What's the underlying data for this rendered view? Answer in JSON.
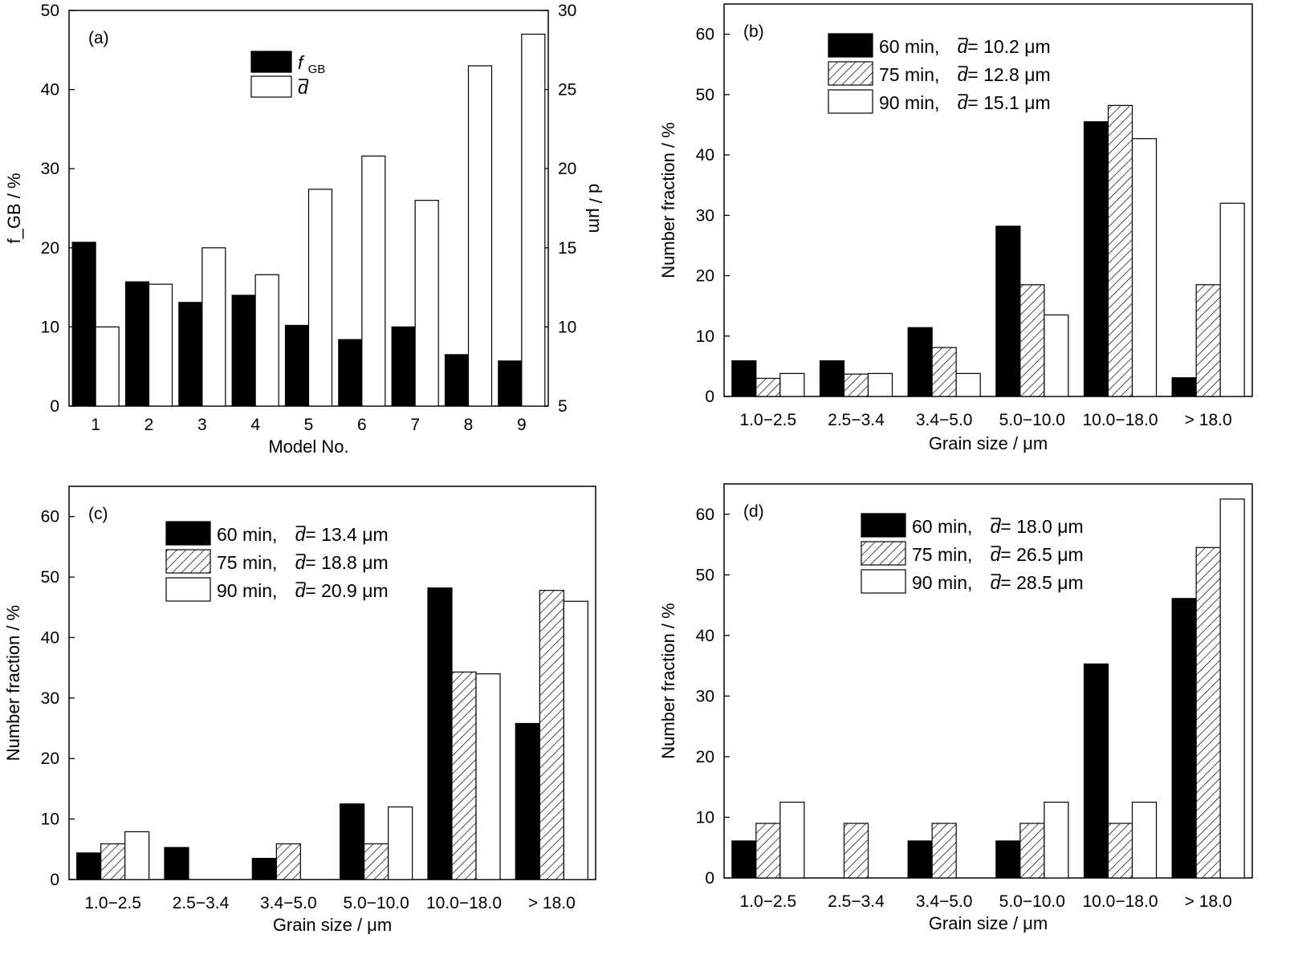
{
  "chart_data": [
    {
      "panel": "(a)",
      "type": "bar",
      "xlabel": "Model No.",
      "ylabel_left": "f_GB / %",
      "ylabel_right": "d / μm",
      "categories": [
        "1",
        "2",
        "3",
        "4",
        "5",
        "6",
        "7",
        "8",
        "9"
      ],
      "ylim_left": [
        0,
        50
      ],
      "yticks_left": [
        0,
        10,
        20,
        30,
        40,
        50
      ],
      "ylim_right": [
        5,
        30
      ],
      "yticks_right": [
        5,
        10,
        15,
        20,
        25,
        30
      ],
      "series": [
        {
          "name": "f_GB",
          "axis": "left",
          "fill": "#000000",
          "values": [
            20.7,
            15.7,
            13.1,
            14.0,
            10.2,
            8.4,
            10.0,
            6.5,
            5.7
          ]
        },
        {
          "name": "d",
          "axis": "right",
          "fill": "#ffffff",
          "values": [
            10.0,
            12.7,
            15.0,
            13.3,
            18.7,
            20.8,
            18.0,
            26.5,
            28.5
          ]
        }
      ],
      "legend": [
        {
          "sym": "f",
          "sub": "GB",
          "fill": "#000000"
        },
        {
          "sym": "d",
          "sub": "",
          "fill": "#ffffff"
        }
      ],
      "legend_position": "top-center"
    },
    {
      "panel": "(b)",
      "type": "bar",
      "xlabel": "Grain size / μm",
      "ylabel": "Number fraction / %",
      "categories": [
        "1.0−2.5",
        "2.5−3.4",
        "3.4−5.0",
        "5.0−10.0",
        "10.0−18.0",
        "> 18.0"
      ],
      "ylim": [
        0,
        65
      ],
      "yticks": [
        0,
        10,
        20,
        30,
        40,
        50,
        60
      ],
      "series": [
        {
          "name": "60 min, d = 10.2 μm",
          "fill": "solid",
          "values": [
            5.9,
            5.9,
            11.4,
            28.2,
            45.5,
            3.1
          ]
        },
        {
          "name": "75 min, d = 12.8 μm",
          "fill": "hatch",
          "values": [
            3.0,
            3.7,
            8.1,
            18.5,
            48.2,
            18.5
          ]
        },
        {
          "name": "90 min, d = 15.1 μm",
          "fill": "white",
          "values": [
            3.8,
            3.8,
            3.8,
            13.5,
            42.7,
            32.0
          ]
        }
      ],
      "legend": [
        {
          "prefix": "60 min, ",
          "sym": "d",
          "suffix": " = 10.2 μm"
        },
        {
          "prefix": "75 min, ",
          "sym": "d",
          "suffix": " = 12.8 μm"
        },
        {
          "prefix": "90 min, ",
          "sym": "d",
          "suffix": " = 15.1 μm"
        }
      ],
      "legend_position": "top-center"
    },
    {
      "panel": "(c)",
      "type": "bar",
      "xlabel": "Grain size / μm",
      "ylabel": "Number fraction / %",
      "categories": [
        "1.0−2.5",
        "2.5−3.4",
        "3.4−5.0",
        "5.0−10.0",
        "10.0−18.0",
        "> 18.0"
      ],
      "ylim": [
        0,
        65
      ],
      "yticks": [
        0,
        10,
        20,
        30,
        40,
        50,
        60
      ],
      "series": [
        {
          "name": "60 min, d = 13.4 μm",
          "fill": "solid",
          "values": [
            4.4,
            5.3,
            3.5,
            12.5,
            48.2,
            25.8
          ]
        },
        {
          "name": "75 min, d = 18.8 μm",
          "fill": "hatch",
          "values": [
            5.9,
            0,
            5.9,
            5.9,
            34.3,
            47.8
          ]
        },
        {
          "name": "90 min, d = 20.9 μm",
          "fill": "white",
          "values": [
            7.9,
            0,
            0,
            12.0,
            34.0,
            46.0
          ]
        }
      ],
      "legend": [
        {
          "prefix": "60 min, ",
          "sym": "d",
          "suffix": " = 13.4 μm"
        },
        {
          "prefix": "75 min, ",
          "sym": "d",
          "suffix": " = 18.8 μm"
        },
        {
          "prefix": "90 min, ",
          "sym": "d",
          "suffix": " = 20.9 μm"
        }
      ],
      "legend_position": "top-center"
    },
    {
      "panel": "(d)",
      "type": "bar",
      "xlabel": "Grain size / μm",
      "ylabel": "Number fraction / %",
      "categories": [
        "1.0−2.5",
        "2.5−3.4",
        "3.4−5.0",
        "5.0−10.0",
        "10.0−18.0",
        "> 18.0"
      ],
      "ylim": [
        0,
        65
      ],
      "yticks": [
        0,
        10,
        20,
        30,
        40,
        50,
        60
      ],
      "series": [
        {
          "name": "60 min, d = 18.0 μm",
          "fill": "solid",
          "values": [
            6.1,
            0,
            6.1,
            6.1,
            35.3,
            46.1
          ]
        },
        {
          "name": "75 min, d = 26.5 μm",
          "fill": "hatch",
          "values": [
            9.0,
            9.0,
            9.0,
            9.0,
            9.0,
            54.5
          ]
        },
        {
          "name": "90 min, d = 28.5 μm",
          "fill": "white",
          "values": [
            12.5,
            0,
            0,
            12.5,
            12.5,
            62.5
          ]
        }
      ],
      "legend": [
        {
          "prefix": "60 min, ",
          "sym": "d",
          "suffix": " = 18.0 μm"
        },
        {
          "prefix": "75 min, ",
          "sym": "d",
          "suffix": " = 26.5 μm"
        },
        {
          "prefix": "90 min, ",
          "sym": "d",
          "suffix": " = 28.5 μm"
        }
      ],
      "legend_position": "top-center"
    }
  ]
}
